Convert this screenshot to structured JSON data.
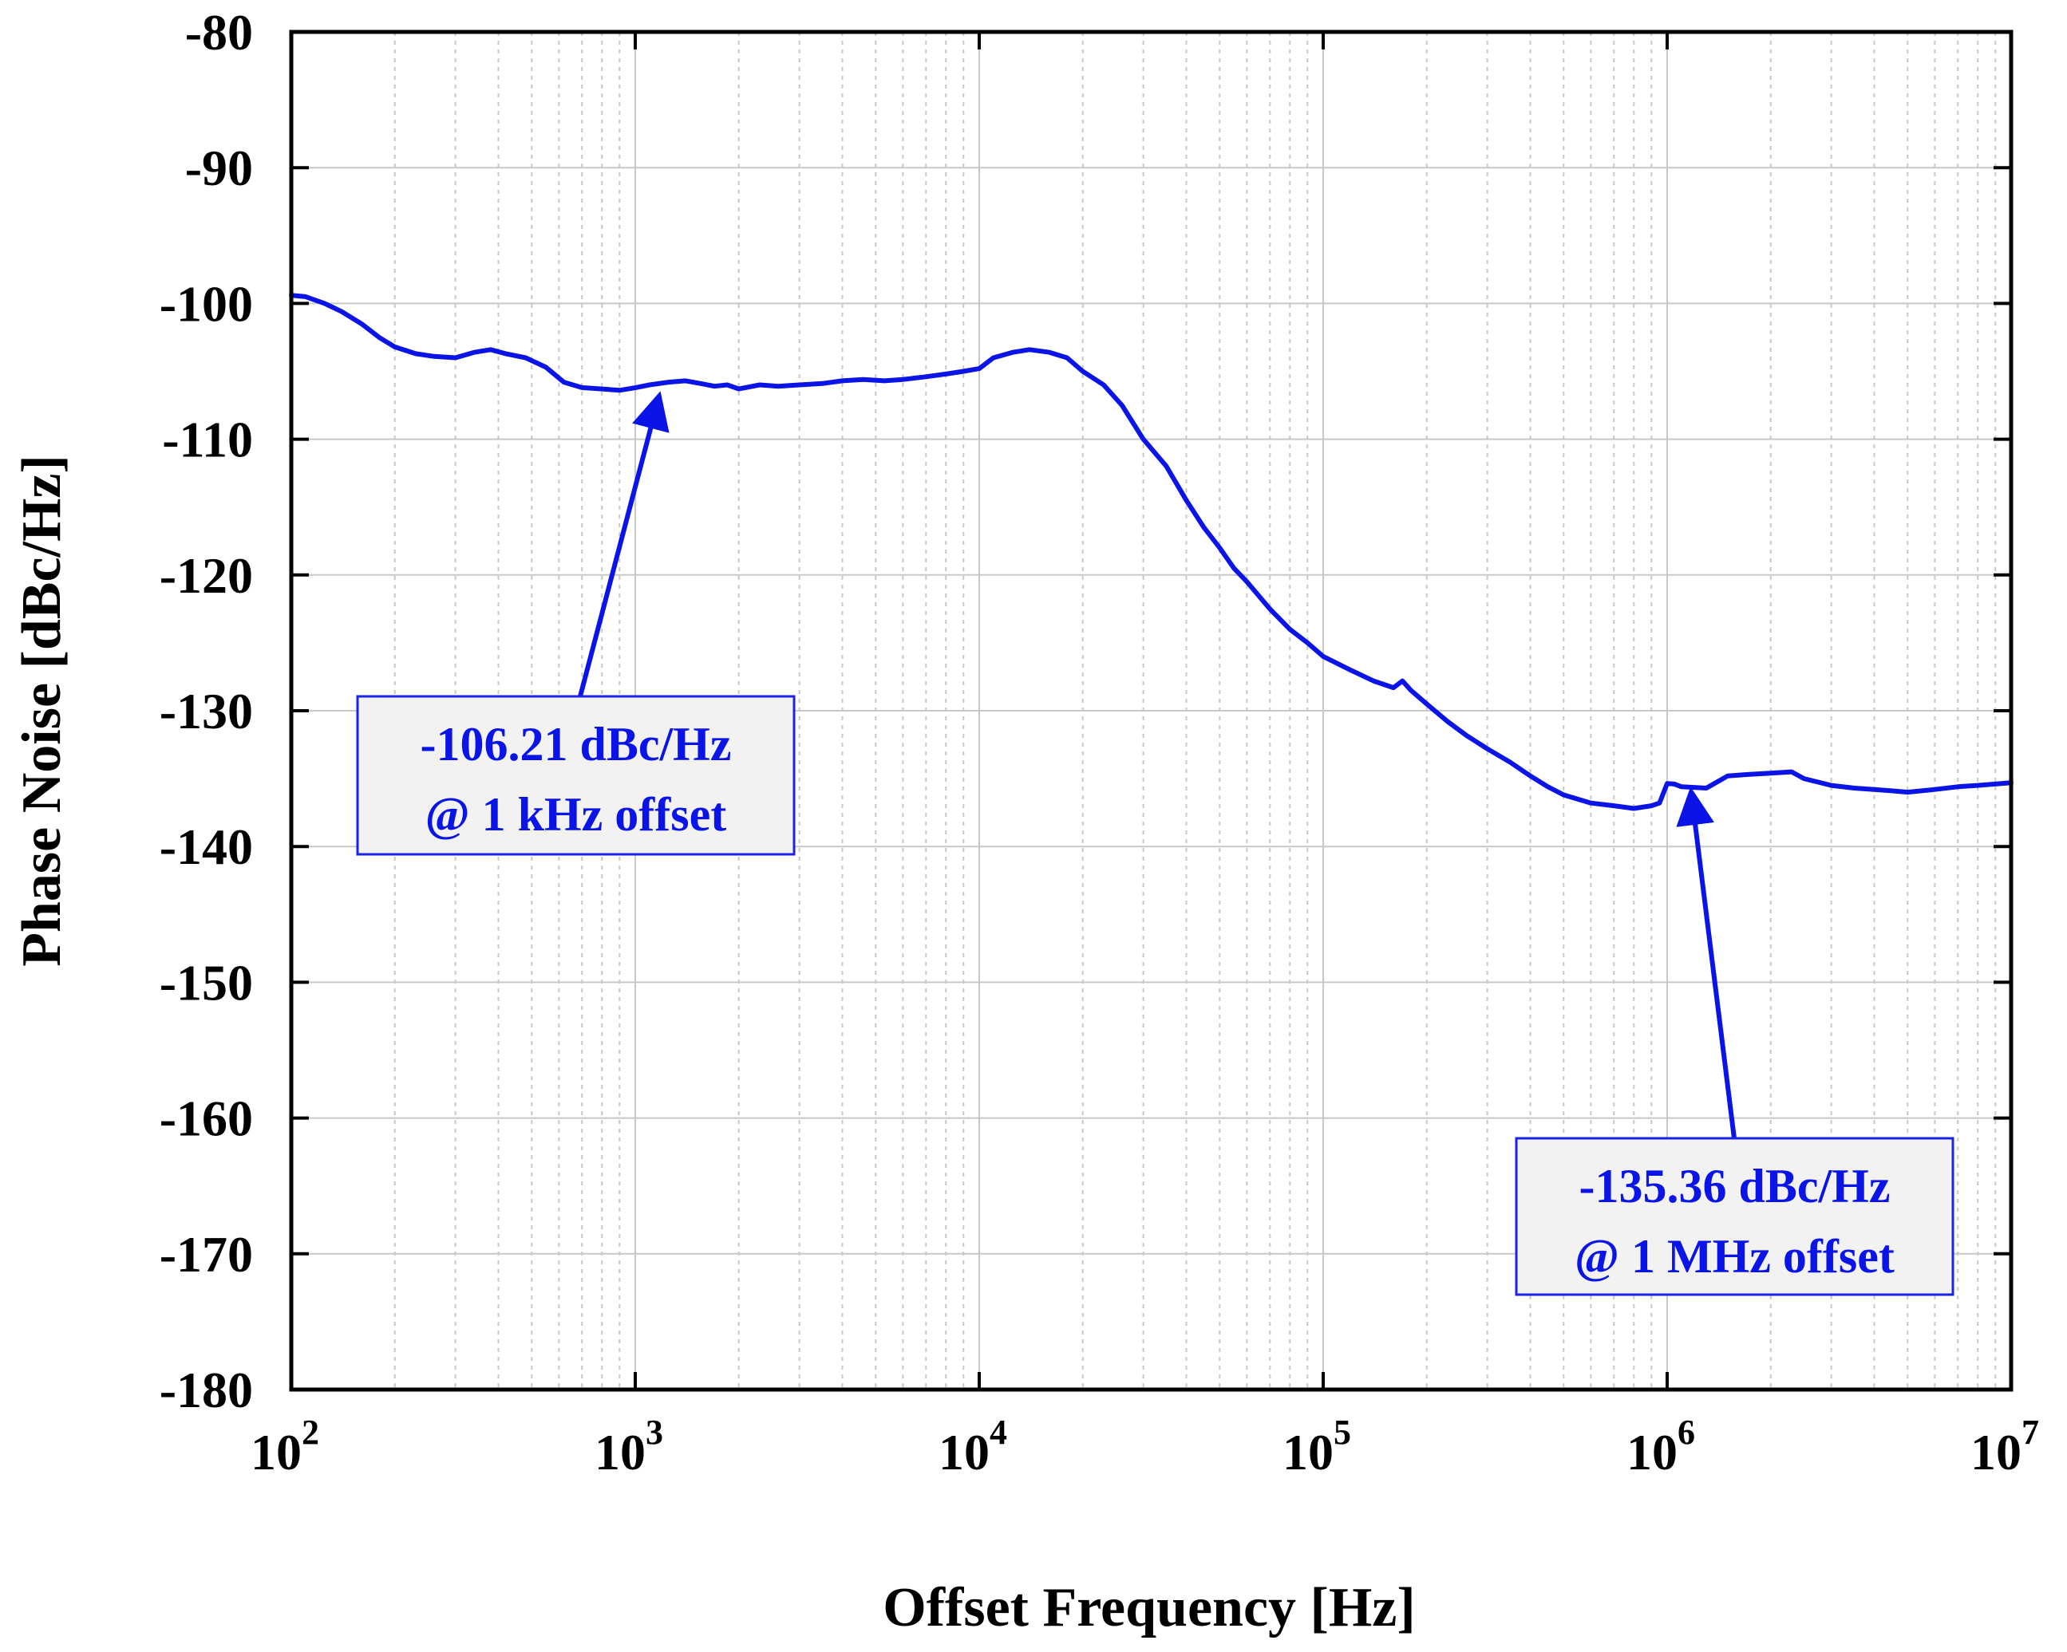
{
  "chart_data": {
    "type": "line",
    "title": "",
    "xlabel": "Offset Frequency [Hz]",
    "ylabel": "Phase Noise [dBc/Hz]",
    "xscale": "log",
    "xlim": [
      100,
      10000000
    ],
    "ylim": [
      -180,
      -80
    ],
    "grid": true,
    "x_ticks": [
      {
        "base": "10",
        "exp": "2"
      },
      {
        "base": "10",
        "exp": "3"
      },
      {
        "base": "10",
        "exp": "4"
      },
      {
        "base": "10",
        "exp": "5"
      },
      {
        "base": "10",
        "exp": "6"
      },
      {
        "base": "10",
        "exp": "7"
      }
    ],
    "y_ticks": [
      "-80",
      "-90",
      "-100",
      "-110",
      "-120",
      "-130",
      "-140",
      "-150",
      "-160",
      "-170",
      "-180"
    ],
    "series": [
      {
        "name": "Phase Noise",
        "color": "#0a14e6",
        "x": [
          100,
          110,
          125,
          140,
          160,
          180,
          200,
          230,
          260,
          300,
          340,
          380,
          420,
          480,
          550,
          620,
          700,
          800,
          900,
          1000,
          1100,
          1250,
          1400,
          1550,
          1700,
          1850,
          2000,
          2300,
          2600,
          3000,
          3500,
          4000,
          4600,
          5300,
          6000,
          7000,
          8000,
          9000,
          10000,
          11000,
          12500,
          14000,
          16000,
          18000,
          20000,
          23000,
          26000,
          30000,
          35000,
          40000,
          45000,
          50000,
          55000,
          60000,
          70000,
          80000,
          90000,
          100000,
          120000,
          140000,
          160000,
          170000,
          180000,
          200000,
          230000,
          260000,
          300000,
          350000,
          400000,
          450000,
          500000,
          600000,
          700000,
          800000,
          900000,
          950000,
          1000000,
          1050000,
          1100000,
          1300000,
          1500000,
          1700000,
          2000000,
          2300000,
          2500000,
          3000000,
          3500000,
          4000000,
          4500000,
          5000000,
          6000000,
          7000000,
          8000000,
          10000000
        ],
        "values": [
          -99.4,
          -99.5,
          -100.0,
          -100.6,
          -101.5,
          -102.5,
          -103.2,
          -103.7,
          -103.9,
          -104.0,
          -103.6,
          -103.4,
          -103.7,
          -104.0,
          -104.7,
          -105.8,
          -106.2,
          -106.3,
          -106.4,
          -106.21,
          -106.0,
          -105.8,
          -105.7,
          -105.9,
          -106.1,
          -106.0,
          -106.3,
          -106.0,
          -106.1,
          -106.0,
          -105.9,
          -105.7,
          -105.6,
          -105.7,
          -105.6,
          -105.4,
          -105.2,
          -105.0,
          -104.8,
          -104.0,
          -103.6,
          -103.4,
          -103.6,
          -104.0,
          -105.0,
          -106.0,
          -107.5,
          -110.0,
          -112.0,
          -114.5,
          -116.5,
          -118.0,
          -119.5,
          -120.5,
          -122.5,
          -124.0,
          -125.0,
          -126.0,
          -127.0,
          -127.8,
          -128.3,
          -127.8,
          -128.5,
          -129.5,
          -130.8,
          -131.8,
          -132.8,
          -133.8,
          -134.8,
          -135.6,
          -136.2,
          -136.8,
          -137.0,
          -137.2,
          -137.0,
          -136.8,
          -135.36,
          -135.4,
          -135.6,
          -135.7,
          -134.8,
          -134.7,
          -134.6,
          -134.5,
          -135.0,
          -135.5,
          -135.7,
          -135.8,
          -135.9,
          -136.0,
          -135.8,
          -135.6,
          -135.5,
          -135.3
        ]
      }
    ],
    "annotations": [
      {
        "line1": "-106.21 dBc/Hz",
        "line2": "@ 1 kHz offset",
        "x": 1000,
        "y": -106.21
      },
      {
        "line1": "-135.36 dBc/Hz",
        "line2": "@ 1 MHz offset",
        "x": 1000000,
        "y": -135.36
      }
    ]
  },
  "colors": {
    "line": "#0a14e6",
    "annotation_text": "#0a14e6",
    "annotation_border": "#1a22e8",
    "annotation_fill": "#f2f2f2",
    "grid": "#c8c8c8"
  }
}
